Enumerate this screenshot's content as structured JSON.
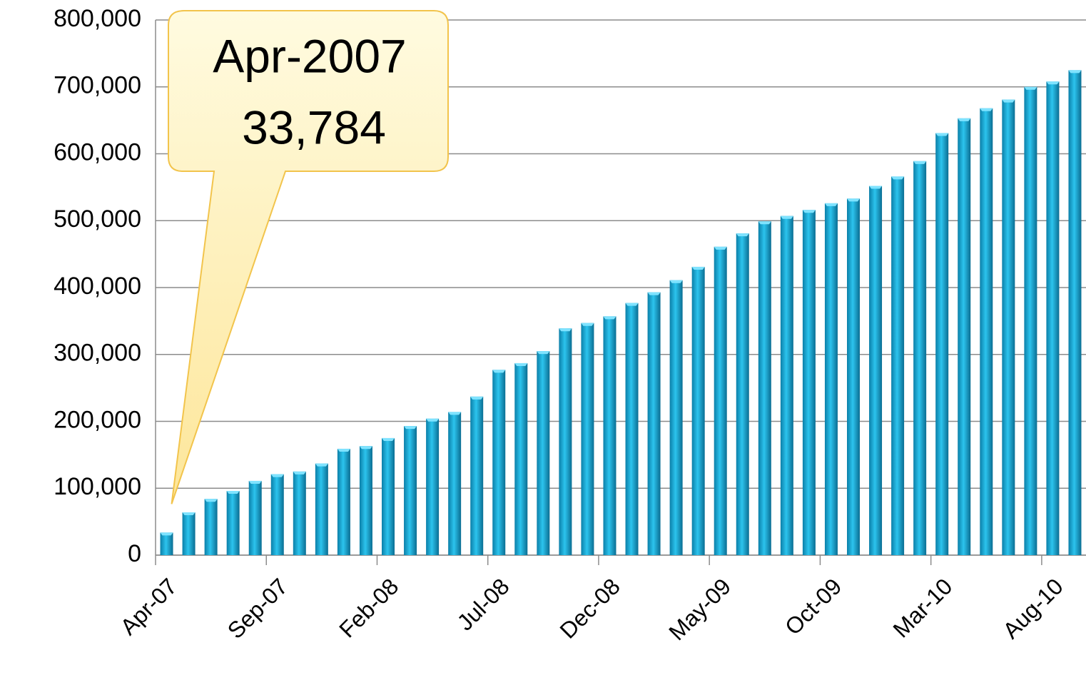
{
  "chart_data": {
    "type": "bar",
    "categories": [
      "Apr-07",
      null,
      null,
      null,
      null,
      "Sep-07",
      null,
      null,
      null,
      null,
      "Feb-08",
      null,
      null,
      null,
      null,
      "Jul-08",
      null,
      null,
      null,
      null,
      "Dec-08",
      null,
      null,
      null,
      null,
      "May-09",
      null,
      null,
      null,
      null,
      "Oct-09",
      null,
      null,
      null,
      null,
      "Mar-10",
      null,
      null,
      null,
      null,
      "Aug-10",
      null
    ],
    "values": [
      33784,
      64000,
      84000,
      96000,
      111000,
      121000,
      125000,
      137000,
      159000,
      163000,
      175000,
      193000,
      204000,
      214000,
      237000,
      277000,
      287000,
      305000,
      339000,
      347000,
      357000,
      377000,
      393000,
      411000,
      431000,
      461000,
      481000,
      499000,
      507000,
      516000,
      526000,
      533000,
      552000,
      566000,
      589000,
      631000,
      653000,
      668000,
      681000,
      700000,
      708000,
      725000
    ],
    "value_labels": [
      "33,784",
      null,
      null,
      null,
      null,
      null,
      null,
      null,
      null,
      null,
      null,
      null,
      null,
      null,
      null,
      null,
      null,
      null,
      null,
      null,
      null,
      null,
      null,
      null,
      null,
      null,
      null,
      null,
      null,
      null,
      null,
      null,
      null,
      null,
      null,
      null,
      null,
      null,
      null,
      null,
      null,
      null
    ],
    "annotation": "Apr-2007",
    "color": "#1aa6d0",
    "ylim": [
      0,
      800000
    ],
    "yticks": [
      0,
      {
        "value": 100000,
        "label": "100,000"
      },
      {
        "value": 200000,
        "label": "200,000"
      },
      {
        "value": 300000,
        "label": "300,000"
      },
      {
        "value": 400000,
        "label": "400,000"
      },
      {
        "value": 500000,
        "label": "500,000"
      },
      {
        "value": 600000,
        "label": "600,000"
      },
      {
        "value": 700000,
        "label": "700,000"
      },
      {
        "value": 800000,
        "label": "800,000"
      }
    ],
    "grid": true
  }
}
